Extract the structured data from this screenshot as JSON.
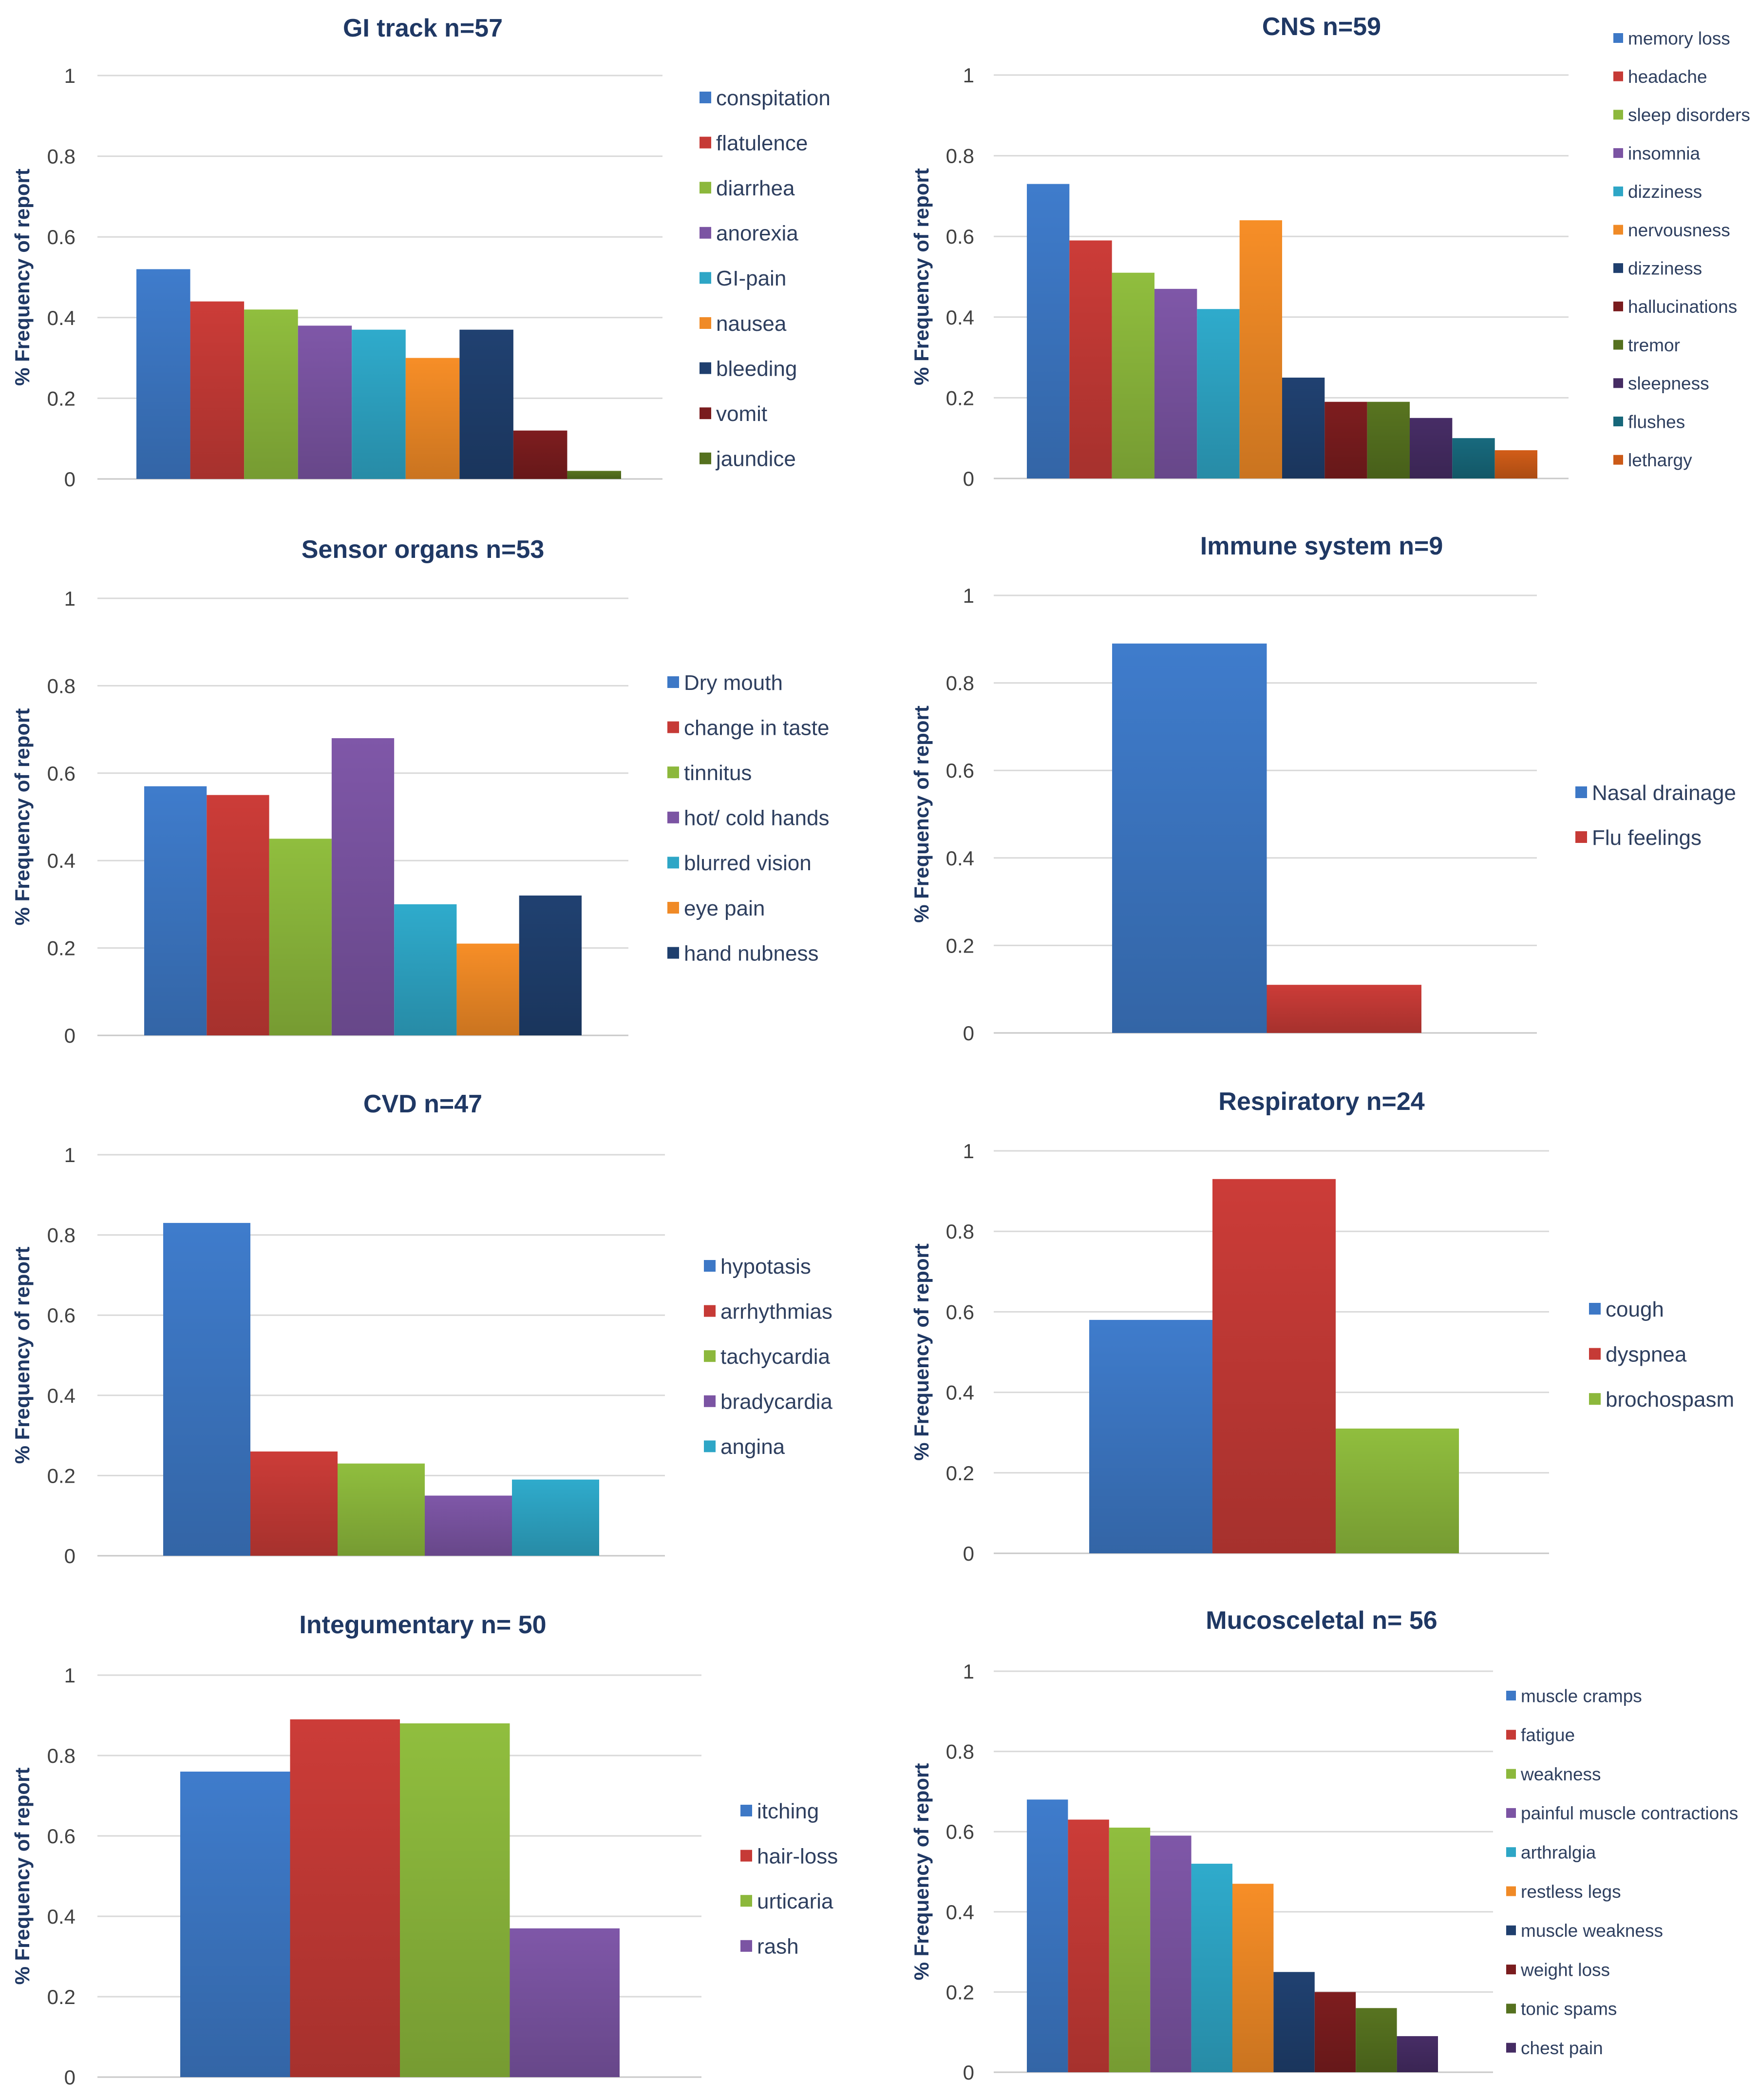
{
  "colors": [
    "#3d78c6",
    "#c63a36",
    "#8cb83c",
    "#7b54a3",
    "#2ea6c6",
    "#f08a26",
    "#1f3f6e",
    "#7a1c1e",
    "#55711f",
    "#452c63",
    "#17677a",
    "#cc5a17"
  ],
  "chart_data": [
    {
      "type": "bar",
      "title": "GI track n=57",
      "ylabel": "% Frequency of report",
      "xlabel": "",
      "ylim": [
        0,
        1
      ],
      "yticks": [
        "0",
        "0.2",
        "0.4",
        "0.6",
        "0.8",
        "1"
      ],
      "grid": true,
      "legend": "right",
      "categories": [
        "conspitation",
        "flatulence",
        "diarrhea",
        "anorexia",
        "GI-pain",
        "nausea",
        "bleeding",
        "vomit",
        "jaundice"
      ],
      "values": [
        0.52,
        0.44,
        0.42,
        0.38,
        0.37,
        0.3,
        0.37,
        0.12,
        0.02
      ]
    },
    {
      "type": "bar",
      "title": "CNS n=59",
      "ylabel": "% Frequency of report",
      "xlabel": "",
      "ylim": [
        0,
        1
      ],
      "yticks": [
        "0",
        "0.2",
        "0.4",
        "0.6",
        "0.8",
        "1"
      ],
      "grid": true,
      "legend": "right",
      "categories": [
        "memory loss",
        "headache",
        "sleep disorders",
        "insomnia",
        "dizziness",
        "nervousness",
        "dizziness",
        "hallucinations",
        "tremor",
        "sleepness",
        "flushes",
        "lethargy"
      ],
      "values": [
        0.73,
        0.59,
        0.51,
        0.47,
        0.42,
        0.64,
        0.25,
        0.19,
        0.19,
        0.15,
        0.1,
        0.07
      ]
    },
    {
      "type": "bar",
      "title": "Sensor organs n=53",
      "ylabel": "% Frequency of report",
      "xlabel": "",
      "ylim": [
        0,
        1
      ],
      "yticks": [
        "0",
        "0.2",
        "0.4",
        "0.6",
        "0.8",
        "1"
      ],
      "grid": true,
      "legend": "right",
      "categories": [
        "Dry mouth",
        "change in taste",
        "tinnitus",
        "hot/ cold hands",
        "blurred vision",
        "eye pain",
        "hand nubness"
      ],
      "values": [
        0.57,
        0.55,
        0.45,
        0.68,
        0.3,
        0.21,
        0.32
      ]
    },
    {
      "type": "bar",
      "title": "Immune system n=9",
      "ylabel": "% Frequency of report",
      "xlabel": "",
      "ylim": [
        0,
        1
      ],
      "yticks": [
        "0",
        "0.2",
        "0.4",
        "0.6",
        "0.8",
        "1"
      ],
      "grid": true,
      "legend": "right",
      "categories": [
        "Nasal drainage",
        "Flu feelings"
      ],
      "values": [
        0.89,
        0.11
      ]
    },
    {
      "type": "bar",
      "title": "CVD n=47",
      "ylabel": "% Frequency of report",
      "xlabel": "",
      "ylim": [
        0,
        1
      ],
      "yticks": [
        "0",
        "0.2",
        "0.4",
        "0.6",
        "0.8",
        "1"
      ],
      "grid": true,
      "legend": "right",
      "categories": [
        "hypotasis",
        "arrhythmias",
        "tachycardia",
        "bradycardia",
        "angina"
      ],
      "values": [
        0.83,
        0.26,
        0.23,
        0.15,
        0.19
      ]
    },
    {
      "type": "bar",
      "title": "Respiratory n=24",
      "ylabel": "% Frequency of report",
      "xlabel": "",
      "ylim": [
        0,
        1
      ],
      "yticks": [
        "0",
        "0.2",
        "0.4",
        "0.6",
        "0.8",
        "1"
      ],
      "grid": true,
      "legend": "right",
      "categories": [
        "cough",
        "dyspnea",
        "brochospasm"
      ],
      "values": [
        0.58,
        0.93,
        0.31
      ]
    },
    {
      "type": "bar",
      "title": "Integumentary n= 50",
      "ylabel": "% Frequency of report",
      "xlabel": "",
      "ylim": [
        0,
        1
      ],
      "yticks": [
        "0",
        "0.2",
        "0.4",
        "0.6",
        "0.8",
        "1"
      ],
      "grid": true,
      "legend": "right",
      "categories": [
        "itching",
        "hair-loss",
        "urticaria",
        "rash"
      ],
      "values": [
        0.76,
        0.89,
        0.88,
        0.37
      ]
    },
    {
      "type": "bar",
      "title": "Mucosceletal n= 56",
      "ylabel": "% Frequency of report",
      "xlabel": "",
      "ylim": [
        0,
        1
      ],
      "yticks": [
        "0",
        "0.2",
        "0.4",
        "0.6",
        "0.8",
        "1"
      ],
      "grid": true,
      "legend": "right",
      "categories": [
        "muscle cramps",
        "fatigue",
        "weakness",
        "painful muscle contractions",
        "arthralgia",
        "restless legs",
        "muscle weakness",
        "weight loss",
        "tonic spams",
        "chest pain"
      ],
      "values": [
        0.68,
        0.63,
        0.61,
        0.59,
        0.52,
        0.47,
        0.25,
        0.2,
        0.16,
        0.09
      ]
    }
  ]
}
